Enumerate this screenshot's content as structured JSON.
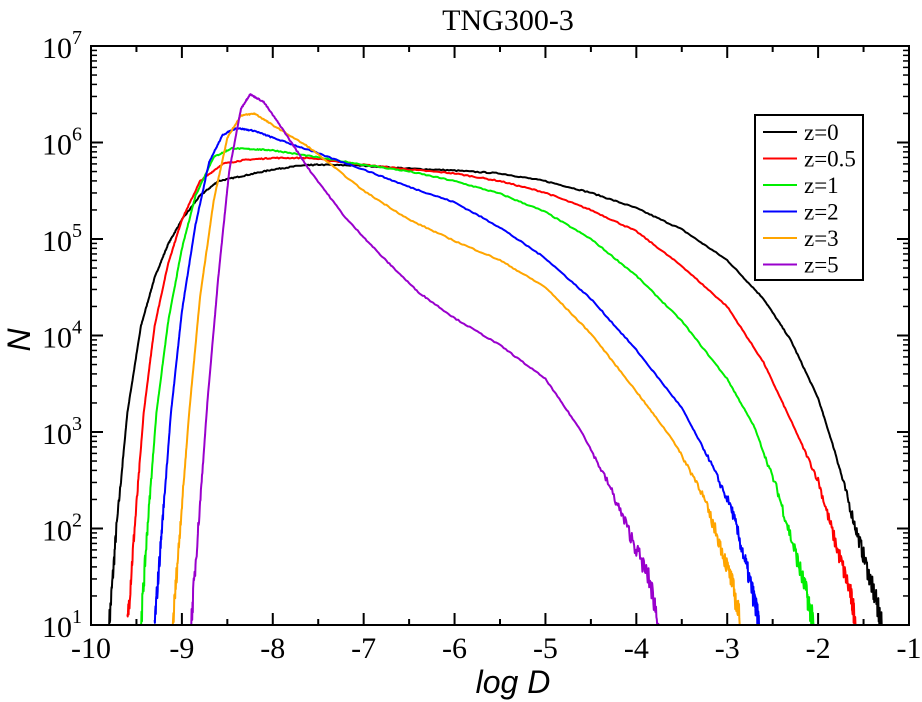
{
  "chart_data": {
    "type": "line",
    "title": "TNG300-3",
    "xlabel": "log D",
    "ylabel": "N",
    "xlim": [
      -10,
      -1
    ],
    "ylim_log10": [
      1,
      7
    ],
    "y_scale": "log",
    "legend_position": "top-right",
    "x_ticks": [
      {
        "value": -10,
        "label": "-10"
      },
      {
        "value": -9,
        "label": "-9"
      },
      {
        "value": -8,
        "label": "-8"
      },
      {
        "value": -7,
        "label": "-7"
      },
      {
        "value": -6,
        "label": "-6"
      },
      {
        "value": -5,
        "label": "-5"
      },
      {
        "value": -4,
        "label": "-4"
      },
      {
        "value": -3,
        "label": "-3"
      },
      {
        "value": -2,
        "label": "-2"
      },
      {
        "value": -1,
        "label": "-1"
      }
    ],
    "y_ticks": [
      {
        "exp": 1,
        "base": "10",
        "sup": "1"
      },
      {
        "exp": 2,
        "base": "10",
        "sup": "2"
      },
      {
        "exp": 3,
        "base": "10",
        "sup": "3"
      },
      {
        "exp": 4,
        "base": "10",
        "sup": "4"
      },
      {
        "exp": 5,
        "base": "10",
        "sup": "5"
      },
      {
        "exp": 6,
        "base": "10",
        "sup": "6"
      },
      {
        "exp": 7,
        "base": "10",
        "sup": "7"
      }
    ],
    "series": [
      {
        "name": "z=0",
        "color": "#000000",
        "points": [
          [
            -9.8,
            1.0
          ],
          [
            -9.72,
            2.0
          ],
          [
            -9.6,
            3.2
          ],
          [
            -9.45,
            4.1
          ],
          [
            -9.3,
            4.6
          ],
          [
            -9.15,
            4.95
          ],
          [
            -9.0,
            5.2
          ],
          [
            -8.8,
            5.45
          ],
          [
            -8.6,
            5.6
          ],
          [
            -8.3,
            5.66
          ],
          [
            -8.0,
            5.72
          ],
          [
            -7.7,
            5.76
          ],
          [
            -7.5,
            5.77
          ],
          [
            -7.0,
            5.76
          ],
          [
            -6.5,
            5.73
          ],
          [
            -6.0,
            5.71
          ],
          [
            -5.5,
            5.68
          ],
          [
            -5.0,
            5.6
          ],
          [
            -4.5,
            5.48
          ],
          [
            -4.0,
            5.32
          ],
          [
            -3.5,
            5.1
          ],
          [
            -3.0,
            4.78
          ],
          [
            -2.6,
            4.38
          ],
          [
            -2.3,
            3.95
          ],
          [
            -2.0,
            3.35
          ],
          [
            -1.8,
            2.75
          ],
          [
            -1.6,
            2.05
          ],
          [
            -1.45,
            1.55
          ],
          [
            -1.35,
            1.2
          ],
          [
            -1.3,
            1.0
          ]
        ]
      },
      {
        "name": "z=0.5",
        "color": "#ff0000",
        "points": [
          [
            -9.6,
            1.0
          ],
          [
            -9.52,
            2.0
          ],
          [
            -9.42,
            3.2
          ],
          [
            -9.3,
            4.1
          ],
          [
            -9.15,
            4.75
          ],
          [
            -9.0,
            5.2
          ],
          [
            -8.8,
            5.6
          ],
          [
            -8.55,
            5.78
          ],
          [
            -8.3,
            5.82
          ],
          [
            -8.0,
            5.84
          ],
          [
            -7.6,
            5.84
          ],
          [
            -7.0,
            5.77
          ],
          [
            -6.5,
            5.72
          ],
          [
            -6.0,
            5.68
          ],
          [
            -5.5,
            5.6
          ],
          [
            -5.0,
            5.48
          ],
          [
            -4.5,
            5.3
          ],
          [
            -4.0,
            5.08
          ],
          [
            -3.5,
            4.72
          ],
          [
            -3.0,
            4.3
          ],
          [
            -2.6,
            3.72
          ],
          [
            -2.3,
            3.12
          ],
          [
            -2.0,
            2.5
          ],
          [
            -1.8,
            1.82
          ],
          [
            -1.65,
            1.35
          ],
          [
            -1.58,
            1.0
          ]
        ]
      },
      {
        "name": "z=1",
        "color": "#00ee00",
        "points": [
          [
            -9.45,
            1.0
          ],
          [
            -9.38,
            2.0
          ],
          [
            -9.28,
            3.2
          ],
          [
            -9.15,
            4.15
          ],
          [
            -9.0,
            4.9
          ],
          [
            -8.85,
            5.45
          ],
          [
            -8.65,
            5.85
          ],
          [
            -8.45,
            5.94
          ],
          [
            -8.2,
            5.93
          ],
          [
            -8.0,
            5.92
          ],
          [
            -7.6,
            5.86
          ],
          [
            -7.0,
            5.77
          ],
          [
            -6.5,
            5.7
          ],
          [
            -6.0,
            5.6
          ],
          [
            -5.5,
            5.47
          ],
          [
            -5.0,
            5.28
          ],
          [
            -4.5,
            5.0
          ],
          [
            -4.0,
            4.62
          ],
          [
            -3.5,
            4.15
          ],
          [
            -3.0,
            3.55
          ],
          [
            -2.7,
            3.05
          ],
          [
            -2.45,
            2.4
          ],
          [
            -2.25,
            1.75
          ],
          [
            -2.12,
            1.3
          ],
          [
            -2.05,
            1.0
          ]
        ]
      },
      {
        "name": "z=2",
        "color": "#0000ff",
        "points": [
          [
            -9.3,
            1.0
          ],
          [
            -9.22,
            2.0
          ],
          [
            -9.12,
            3.2
          ],
          [
            -9.0,
            4.25
          ],
          [
            -8.85,
            5.15
          ],
          [
            -8.7,
            5.8
          ],
          [
            -8.55,
            6.08
          ],
          [
            -8.4,
            6.15
          ],
          [
            -8.2,
            6.12
          ],
          [
            -8.0,
            6.05
          ],
          [
            -7.6,
            5.92
          ],
          [
            -7.0,
            5.72
          ],
          [
            -6.5,
            5.54
          ],
          [
            -6.0,
            5.38
          ],
          [
            -5.5,
            5.12
          ],
          [
            -5.0,
            4.8
          ],
          [
            -4.5,
            4.38
          ],
          [
            -4.0,
            3.85
          ],
          [
            -3.5,
            3.25
          ],
          [
            -3.2,
            2.72
          ],
          [
            -2.95,
            2.2
          ],
          [
            -2.8,
            1.65
          ],
          [
            -2.7,
            1.25
          ],
          [
            -2.65,
            1.0
          ]
        ]
      },
      {
        "name": "z=3",
        "color": "#ffa500",
        "points": [
          [
            -9.1,
            1.0
          ],
          [
            -9.02,
            2.0
          ],
          [
            -8.92,
            3.2
          ],
          [
            -8.8,
            4.4
          ],
          [
            -8.65,
            5.4
          ],
          [
            -8.5,
            6.05
          ],
          [
            -8.35,
            6.28
          ],
          [
            -8.2,
            6.3
          ],
          [
            -8.0,
            6.18
          ],
          [
            -7.6,
            5.95
          ],
          [
            -7.0,
            5.5
          ],
          [
            -6.5,
            5.2
          ],
          [
            -6.0,
            4.98
          ],
          [
            -5.5,
            4.78
          ],
          [
            -5.0,
            4.5
          ],
          [
            -4.5,
            4.02
          ],
          [
            -4.0,
            3.42
          ],
          [
            -3.6,
            2.92
          ],
          [
            -3.3,
            2.42
          ],
          [
            -3.1,
            1.9
          ],
          [
            -2.95,
            1.45
          ],
          [
            -2.85,
            1.0
          ]
        ]
      },
      {
        "name": "z=5",
        "color": "#9900cc",
        "points": [
          [
            -8.9,
            1.0
          ],
          [
            -8.82,
            2.0
          ],
          [
            -8.72,
            3.3
          ],
          [
            -8.6,
            4.6
          ],
          [
            -8.48,
            5.7
          ],
          [
            -8.35,
            6.35
          ],
          [
            -8.25,
            6.5
          ],
          [
            -8.1,
            6.42
          ],
          [
            -7.9,
            6.15
          ],
          [
            -7.6,
            5.72
          ],
          [
            -7.2,
            5.22
          ],
          [
            -6.8,
            4.82
          ],
          [
            -6.4,
            4.45
          ],
          [
            -6.0,
            4.18
          ],
          [
            -5.5,
            3.9
          ],
          [
            -5.0,
            3.55
          ],
          [
            -4.6,
            3.0
          ],
          [
            -4.3,
            2.45
          ],
          [
            -4.05,
            1.9
          ],
          [
            -3.85,
            1.45
          ],
          [
            -3.75,
            1.0
          ]
        ]
      }
    ]
  }
}
